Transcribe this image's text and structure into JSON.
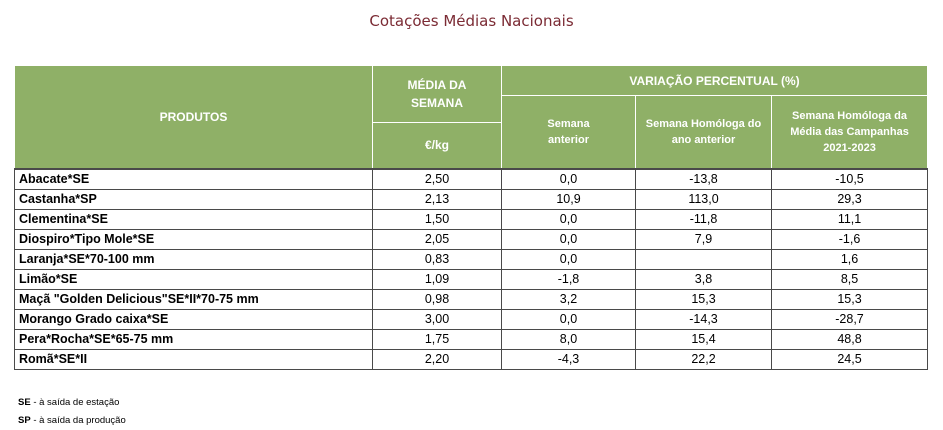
{
  "title": "Cotações Médias Nacionais",
  "headers": {
    "produtos": "PRODUTOS",
    "media_da_semana": "MÉDIA DA SEMANA",
    "unit": "€/kg",
    "variacao": "VARIAÇÃO PERCENTUAL (%)",
    "semana_anterior": "Semana anterior",
    "semana_homologa": "Semana Homóloga do ano anterior",
    "semana_homologa_media": "Semana Homóloga da Média das Campanhas 2021-2023"
  },
  "rows": [
    {
      "produto": "Abacate*SE",
      "media": "2,50",
      "sem_ant": "0,0",
      "homologa": "-13,8",
      "homologa_media": "-10,5"
    },
    {
      "produto": "Castanha*SP",
      "media": "2,13",
      "sem_ant": "10,9",
      "homologa": "113,0",
      "homologa_media": "29,3"
    },
    {
      "produto": "Clementina*SE",
      "media": "1,50",
      "sem_ant": "0,0",
      "homologa": "-11,8",
      "homologa_media": "11,1"
    },
    {
      "produto": "Diospiro*Tipo Mole*SE",
      "media": "2,05",
      "sem_ant": "0,0",
      "homologa": "7,9",
      "homologa_media": "-1,6"
    },
    {
      "produto": "Laranja*SE*70-100 mm",
      "media": "0,83",
      "sem_ant": "0,0",
      "homologa": "",
      "homologa_media": "1,6"
    },
    {
      "produto": "Limão*SE",
      "media": "1,09",
      "sem_ant": "-1,8",
      "homologa": "3,8",
      "homologa_media": "8,5"
    },
    {
      "produto": "Maçã \"Golden Delicious\"SE*II*70-75 mm",
      "media": "0,98",
      "sem_ant": "3,2",
      "homologa": "15,3",
      "homologa_media": "15,3"
    },
    {
      "produto": "Morango Grado caixa*SE",
      "media": "3,00",
      "sem_ant": "0,0",
      "homologa": "-14,3",
      "homologa_media": "-28,7"
    },
    {
      "produto": "Pera*Rocha*SE*65-75 mm",
      "media": "1,75",
      "sem_ant": "8,0",
      "homologa": "15,4",
      "homologa_media": "48,8"
    },
    {
      "produto": "Romã*SE*II",
      "media": "2,20",
      "sem_ant": "-4,3",
      "homologa": "22,2",
      "homologa_media": "24,5"
    }
  ],
  "notes": [
    {
      "code": "SE",
      "text": " - à saída de estação"
    },
    {
      "code": "SP",
      "text": " - à saída da produção"
    }
  ]
}
